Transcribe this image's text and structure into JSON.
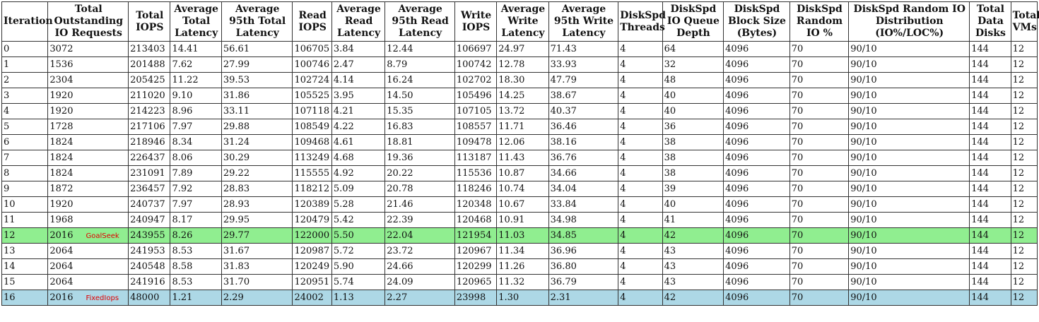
{
  "columns": [
    "Iteration",
    "Total Outstanding IO Requests",
    "Total IOPS",
    "Average Total Latency",
    "Average 95th Total Latency",
    "Read IOPS",
    "Average Read Latency",
    "Average 95th Read Latency",
    "Write IOPS",
    "Average Write Latency",
    "Average 95th Write Latency",
    "DiskSpd Threads",
    "DiskSpd IO Queue Depth",
    "DiskSpd Block Size (Bytes)",
    "DiskSpd Random IO %",
    "DiskSpd Random IO Distribution (IO%/LOC%)",
    "Total Data Disks",
    "Total VMs"
  ],
  "rows": [
    {
      "cells": [
        "0",
        "3072",
        "213403",
        "14.41",
        "56.61",
        "106705",
        "3.84",
        "12.44",
        "106697",
        "24.97",
        "71.43",
        "4",
        "64",
        "4096",
        "70",
        "90/10",
        "144",
        "12"
      ],
      "tag": "",
      "highlight": ""
    },
    {
      "cells": [
        "1",
        "1536",
        "201488",
        "7.62",
        "27.99",
        "100746",
        "2.47",
        "8.79",
        "100742",
        "12.78",
        "33.93",
        "4",
        "32",
        "4096",
        "70",
        "90/10",
        "144",
        "12"
      ],
      "tag": "",
      "highlight": ""
    },
    {
      "cells": [
        "2",
        "2304",
        "205425",
        "11.22",
        "39.53",
        "102724",
        "4.14",
        "16.24",
        "102702",
        "18.30",
        "47.79",
        "4",
        "48",
        "4096",
        "70",
        "90/10",
        "144",
        "12"
      ],
      "tag": "",
      "highlight": ""
    },
    {
      "cells": [
        "3",
        "1920",
        "211020",
        "9.10",
        "31.86",
        "105525",
        "3.95",
        "14.50",
        "105496",
        "14.25",
        "38.67",
        "4",
        "40",
        "4096",
        "70",
        "90/10",
        "144",
        "12"
      ],
      "tag": "",
      "highlight": ""
    },
    {
      "cells": [
        "4",
        "1920",
        "214223",
        "8.96",
        "33.11",
        "107118",
        "4.21",
        "15.35",
        "107105",
        "13.72",
        "40.37",
        "4",
        "40",
        "4096",
        "70",
        "90/10",
        "144",
        "12"
      ],
      "tag": "",
      "highlight": ""
    },
    {
      "cells": [
        "5",
        "1728",
        "217106",
        "7.97",
        "29.88",
        "108549",
        "4.22",
        "16.83",
        "108557",
        "11.71",
        "36.46",
        "4",
        "36",
        "4096",
        "70",
        "90/10",
        "144",
        "12"
      ],
      "tag": "",
      "highlight": ""
    },
    {
      "cells": [
        "6",
        "1824",
        "218946",
        "8.34",
        "31.24",
        "109468",
        "4.61",
        "18.81",
        "109478",
        "12.06",
        "38.16",
        "4",
        "38",
        "4096",
        "70",
        "90/10",
        "144",
        "12"
      ],
      "tag": "",
      "highlight": ""
    },
    {
      "cells": [
        "7",
        "1824",
        "226437",
        "8.06",
        "30.29",
        "113249",
        "4.68",
        "19.36",
        "113187",
        "11.43",
        "36.76",
        "4",
        "38",
        "4096",
        "70",
        "90/10",
        "144",
        "12"
      ],
      "tag": "",
      "highlight": ""
    },
    {
      "cells": [
        "8",
        "1824",
        "231091",
        "7.89",
        "29.22",
        "115555",
        "4.92",
        "20.22",
        "115536",
        "10.87",
        "34.66",
        "4",
        "38",
        "4096",
        "70",
        "90/10",
        "144",
        "12"
      ],
      "tag": "",
      "highlight": ""
    },
    {
      "cells": [
        "9",
        "1872",
        "236457",
        "7.92",
        "28.83",
        "118212",
        "5.09",
        "20.78",
        "118246",
        "10.74",
        "34.04",
        "4",
        "39",
        "4096",
        "70",
        "90/10",
        "144",
        "12"
      ],
      "tag": "",
      "highlight": ""
    },
    {
      "cells": [
        "10",
        "1920",
        "240737",
        "7.97",
        "28.93",
        "120389",
        "5.28",
        "21.46",
        "120348",
        "10.67",
        "33.84",
        "4",
        "40",
        "4096",
        "70",
        "90/10",
        "144",
        "12"
      ],
      "tag": "",
      "highlight": ""
    },
    {
      "cells": [
        "11",
        "1968",
        "240947",
        "8.17",
        "29.95",
        "120479",
        "5.42",
        "22.39",
        "120468",
        "10.91",
        "34.98",
        "4",
        "41",
        "4096",
        "70",
        "90/10",
        "144",
        "12"
      ],
      "tag": "",
      "highlight": ""
    },
    {
      "cells": [
        "12",
        "2016",
        "243955",
        "8.26",
        "29.77",
        "122000",
        "5.50",
        "22.04",
        "121954",
        "11.03",
        "34.85",
        "4",
        "42",
        "4096",
        "70",
        "90/10",
        "144",
        "12"
      ],
      "tag": "GoalSeek",
      "highlight": "goal"
    },
    {
      "cells": [
        "13",
        "2064",
        "241953",
        "8.53",
        "31.67",
        "120987",
        "5.72",
        "23.72",
        "120967",
        "11.34",
        "36.96",
        "4",
        "43",
        "4096",
        "70",
        "90/10",
        "144",
        "12"
      ],
      "tag": "",
      "highlight": ""
    },
    {
      "cells": [
        "14",
        "2064",
        "240548",
        "8.58",
        "31.83",
        "120249",
        "5.90",
        "24.66",
        "120299",
        "11.26",
        "36.80",
        "4",
        "43",
        "4096",
        "70",
        "90/10",
        "144",
        "12"
      ],
      "tag": "",
      "highlight": ""
    },
    {
      "cells": [
        "15",
        "2064",
        "241916",
        "8.53",
        "31.70",
        "120951",
        "5.74",
        "24.09",
        "120965",
        "11.32",
        "36.79",
        "4",
        "43",
        "4096",
        "70",
        "90/10",
        "144",
        "12"
      ],
      "tag": "",
      "highlight": ""
    },
    {
      "cells": [
        "16",
        "2016",
        "48000",
        "1.21",
        "2.29",
        "24002",
        "1.13",
        "2.27",
        "23998",
        "1.30",
        "2.31",
        "4",
        "42",
        "4096",
        "70",
        "90/10",
        "144",
        "12"
      ],
      "tag": "FixedIops",
      "highlight": "fixed"
    }
  ],
  "colors": {
    "goalseek_row": "#90ee90",
    "fixediops_row": "#add8e6",
    "tag_text": "#e00000",
    "border": "#333333"
  }
}
